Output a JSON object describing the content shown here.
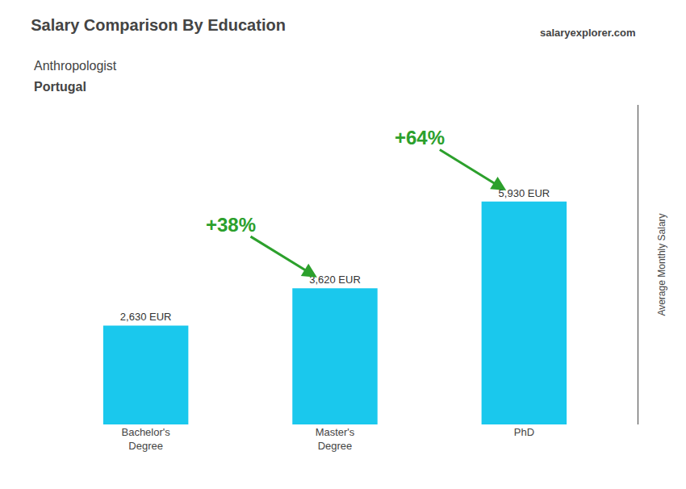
{
  "chart_data": {
    "type": "bar",
    "title": "Salary Comparison By Education",
    "subtitle": [
      "Anthropologist",
      "Portugal"
    ],
    "ylabel": "Average Monthly Salary",
    "categories": [
      "Bachelor's\nDegree",
      "Master's\nDegree",
      "PhD"
    ],
    "values": [
      2630,
      3620,
      5930
    ],
    "value_labels": [
      "2,630 EUR",
      "3,620 EUR",
      "5,930 EUR"
    ],
    "data_labels": true,
    "color": "#1ac8ed",
    "ylim": [
      0,
      8500
    ],
    "yticks": [],
    "tick_labels": "x",
    "grid": false,
    "annotations": [
      "+38%",
      "+64%",
      "salaryexplorer.com"
    ]
  }
}
